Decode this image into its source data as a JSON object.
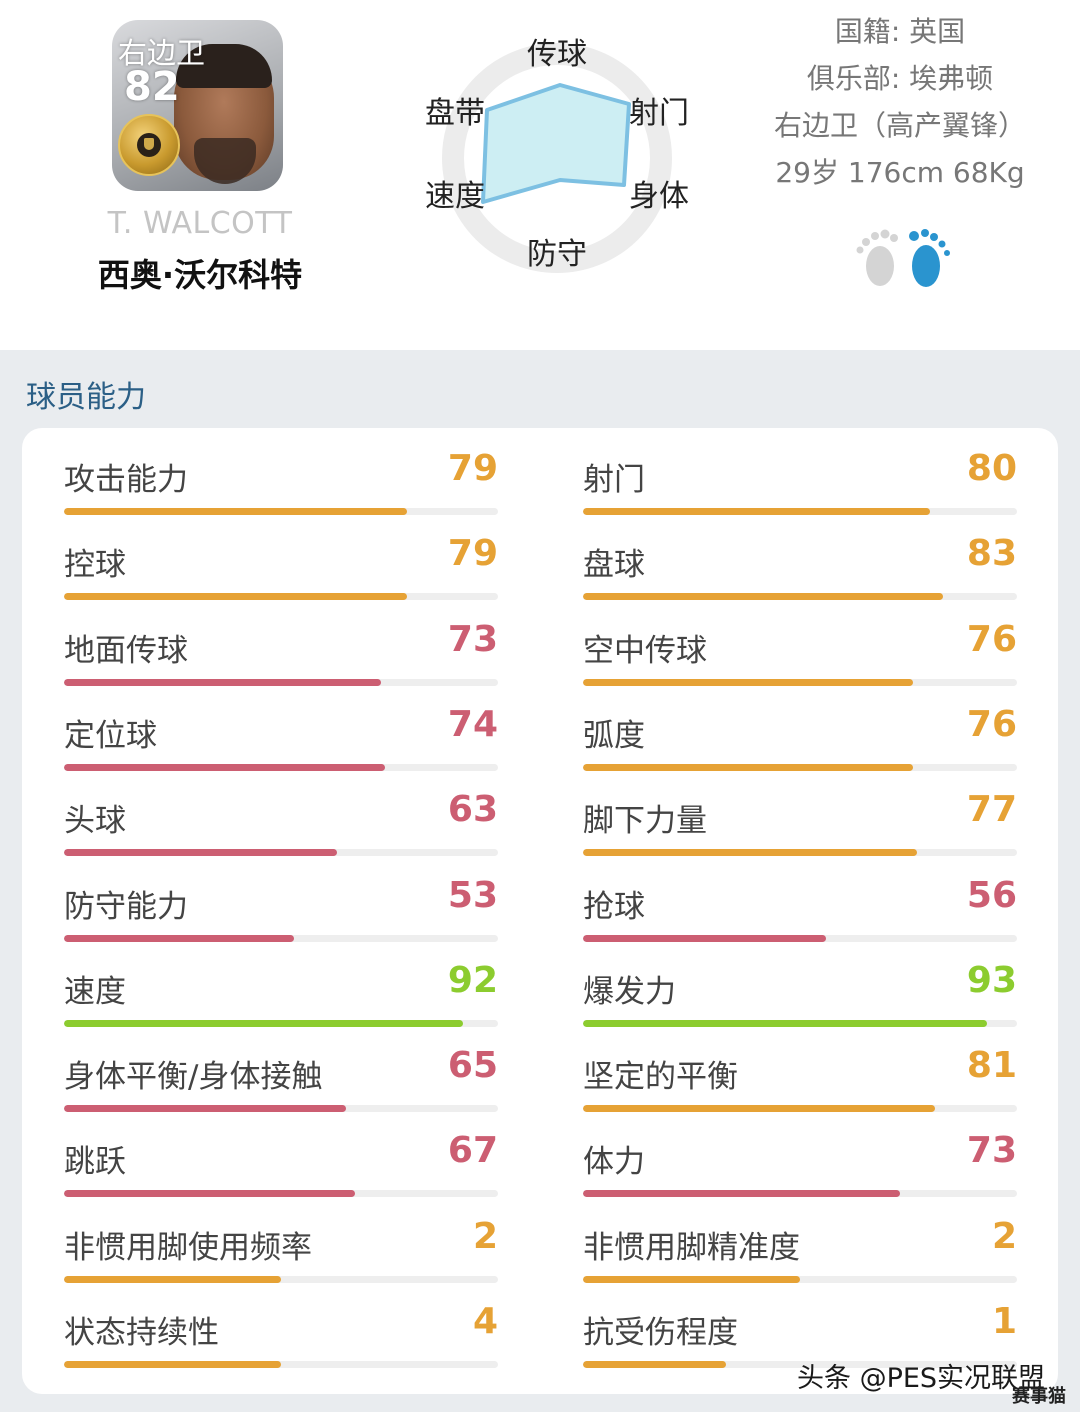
{
  "player": {
    "position": "右边卫",
    "rating": "82",
    "name_en": "T. WALCOTT",
    "name_cn": "西奥·沃尔科特"
  },
  "radar": {
    "labels": {
      "passing": "传球",
      "shooting": "射门",
      "physical": "身体",
      "defending": "防守",
      "speed": "速度",
      "dribbling": "盘带"
    }
  },
  "info": {
    "nationality": "国籍: 英国",
    "club": "俱乐部: 埃弗顿",
    "position_style": "右边卫（高产翼锋）",
    "physical": "29岁 176cm 68Kg"
  },
  "colors": {
    "orange": "#e6a235",
    "red": "#cc5e72",
    "green": "#8ccc2f",
    "radar_fill": "#cdeef3",
    "radar_stroke": "#7dc0e2",
    "section_title": "#2b5f86",
    "foot_left": "#d4d4d4",
    "foot_right": "#2a94cf"
  },
  "section": {
    "title": "球员能力"
  },
  "stats_left": [
    {
      "label": "攻击能力",
      "value": "79",
      "fill_pct": 79,
      "color": "#e6a235"
    },
    {
      "label": "控球",
      "value": "79",
      "fill_pct": 79,
      "color": "#e6a235"
    },
    {
      "label": "地面传球",
      "value": "73",
      "fill_pct": 73,
      "color": "#cc5e72"
    },
    {
      "label": "定位球",
      "value": "74",
      "fill_pct": 74,
      "color": "#cc5e72"
    },
    {
      "label": "头球",
      "value": "63",
      "fill_pct": 63,
      "color": "#cc5e72"
    },
    {
      "label": "防守能力",
      "value": "53",
      "fill_pct": 53,
      "color": "#cc5e72"
    },
    {
      "label": "速度",
      "value": "92",
      "fill_pct": 92,
      "color": "#8ccc2f"
    },
    {
      "label": "身体平衡/身体接触",
      "value": "65",
      "fill_pct": 65,
      "color": "#cc5e72"
    },
    {
      "label": "跳跃",
      "value": "67",
      "fill_pct": 67,
      "color": "#cc5e72"
    },
    {
      "label": "非惯用脚使用频率",
      "value": "2",
      "fill_pct": 50,
      "color": "#e6a235"
    },
    {
      "label": "状态持续性",
      "value": "4",
      "fill_pct": 50,
      "color": "#e6a235"
    }
  ],
  "stats_right": [
    {
      "label": "射门",
      "value": "80",
      "fill_pct": 80,
      "color": "#e6a235"
    },
    {
      "label": "盘球",
      "value": "83",
      "fill_pct": 83,
      "color": "#e6a235"
    },
    {
      "label": "空中传球",
      "value": "76",
      "fill_pct": 76,
      "color": "#e6a235"
    },
    {
      "label": "弧度",
      "value": "76",
      "fill_pct": 76,
      "color": "#e6a235"
    },
    {
      "label": "脚下力量",
      "value": "77",
      "fill_pct": 77,
      "color": "#e6a235"
    },
    {
      "label": "抢球",
      "value": "56",
      "fill_pct": 56,
      "color": "#cc5e72"
    },
    {
      "label": "爆发力",
      "value": "93",
      "fill_pct": 93,
      "color": "#8ccc2f"
    },
    {
      "label": "坚定的平衡",
      "value": "81",
      "fill_pct": 81,
      "color": "#e6a235"
    },
    {
      "label": "体力",
      "value": "73",
      "fill_pct": 73,
      "color": "#cc5e72"
    },
    {
      "label": "非惯用脚精准度",
      "value": "2",
      "fill_pct": 50,
      "color": "#e6a235"
    },
    {
      "label": "抗受伤程度",
      "value": "1",
      "fill_pct": 33,
      "color": "#e6a235"
    }
  ],
  "watermark": {
    "text": "头条 @PES实况联盟",
    "corner": "赛事猫"
  }
}
